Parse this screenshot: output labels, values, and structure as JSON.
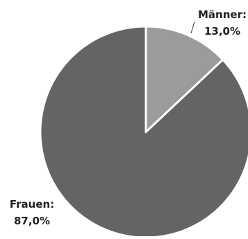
{
  "chart_data": {
    "type": "pie",
    "title": "",
    "start_angle_deg": 0,
    "direction": "clockwise",
    "slices": [
      {
        "category": "Männer",
        "label": "Männer:",
        "value_text": "13,0%",
        "value": 13.0,
        "color": "#9b9b9b"
      },
      {
        "category": "Frauen",
        "label": "Frauen:",
        "value_text": "87,0%",
        "value": 87.0,
        "color": "#646464"
      }
    ],
    "separator_color": "#ffffff",
    "legend": "none"
  }
}
